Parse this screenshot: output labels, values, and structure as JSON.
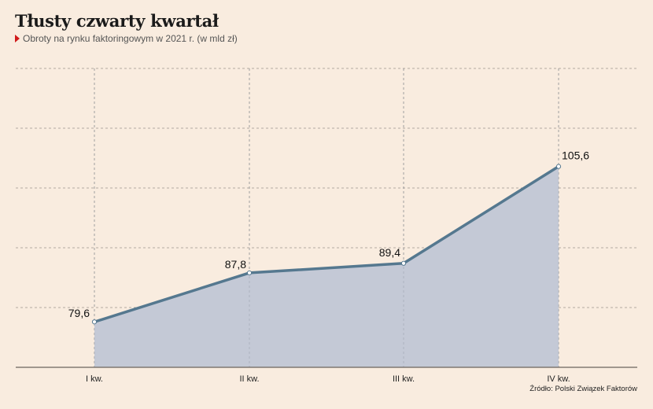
{
  "header": {
    "title": "Tłusty czwarty kwartał",
    "subtitle": "Obroty na rynku faktoringowym w 2021 r. (w mld zł)"
  },
  "source": "Źródło: Polski Związek Faktorów",
  "colors": {
    "background": "#f9ecdf",
    "line": "#55788f",
    "area": "#c4c9d6",
    "marker": "#d01a1a",
    "grid": "#9a948d"
  },
  "chart_data": {
    "type": "area",
    "categories": [
      "I kw.",
      "II kw.",
      "III kw.",
      "IV kw."
    ],
    "values": [
      79.6,
      87.8,
      89.4,
      105.6
    ],
    "value_labels": [
      "79,6",
      "87,8",
      "89,4",
      "105,6"
    ],
    "title": "Tłusty czwarty kwartał",
    "subtitle": "Obroty na rynku faktoringowym w 2021 r. (w mld zł)",
    "xlabel": "",
    "ylabel": "",
    "ylim": [
      72,
      122
    ],
    "grid": true,
    "legend": "none"
  }
}
